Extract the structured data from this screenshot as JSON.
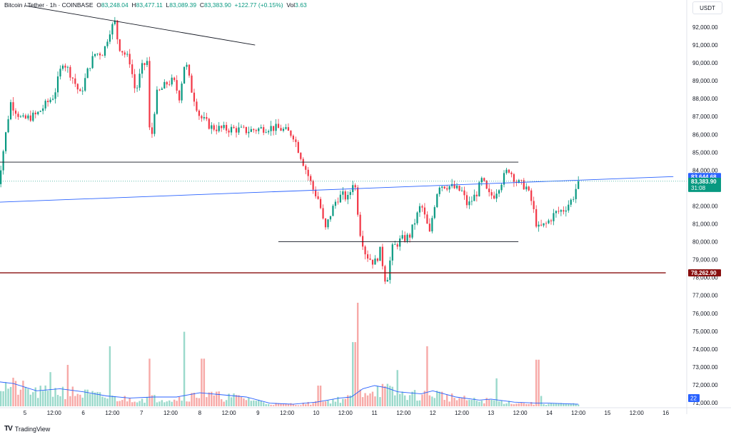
{
  "legend": {
    "symbol": "Bitcoin / Tether · 1h · COINBASE",
    "o_label": "O",
    "o": "83,248.04",
    "h_label": "H",
    "h": "83,477.11",
    "l_label": "L",
    "l": "83,089.39",
    "c_label": "C",
    "c": "83,383.90",
    "change": "+122.77 (+0.15%)",
    "vol_label": "Vol",
    "vol": "3.63"
  },
  "currency_button": "USDT",
  "branding": "TradingView",
  "colors": {
    "up": "#089981",
    "down": "#f23645",
    "trendline": "#2962ff",
    "level": "#131722",
    "support": "#880e0e"
  },
  "chart_data": {
    "type": "candlestick",
    "symbol": "Bitcoin / Tether",
    "interval": "1h",
    "exchange": "COINBASE",
    "ylim": [
      71000,
      93000
    ],
    "y_ticks": [
      "92,000.00",
      "91,000.00",
      "90,000.00",
      "89,000.00",
      "88,000.00",
      "87,000.00",
      "86,000.00",
      "85,000.00",
      "84,000.00",
      "83,000.00",
      "82,000.00",
      "81,000.00",
      "80,000.00",
      "79,000.00",
      "78,000.00",
      "77,000.00",
      "76,000.00",
      "75,000.00",
      "74,000.00",
      "73,000.00",
      "72,000.00",
      "71,000.00"
    ],
    "x_ticks": [
      "5",
      "12:00",
      "6",
      "12:00",
      "7",
      "12:00",
      "8",
      "12:00",
      "9",
      "12:00",
      "10",
      "12:00",
      "11",
      "12:00",
      "12",
      "12:00",
      "13",
      "12:00",
      "14",
      "12:00",
      "15",
      "12:00",
      "16"
    ],
    "price_labels": [
      {
        "value": 83644.68,
        "text": "83,644.68",
        "color": "#2962ff"
      },
      {
        "value": 83383.9,
        "text": "83,383.90",
        "countdown": "31:08",
        "color": "#089981"
      },
      {
        "value": 78262.9,
        "text": "78,262.90",
        "color": "#880e0e"
      }
    ],
    "volume_ma_label": "22",
    "horizontal_levels": [
      {
        "value": 84450,
        "color": "#131722",
        "style": "solid",
        "from_x": 4.5,
        "to_x": 13.47
      },
      {
        "value": 80000,
        "color": "#131722",
        "style": "solid",
        "from_x": 9.35,
        "to_x": 13.47
      },
      {
        "value": 78262.9,
        "color": "#880e0e",
        "style": "solid",
        "from_x": 4.4,
        "to_x": 16.0
      }
    ],
    "trendlines": [
      {
        "color": "#131722",
        "x1": 5.0,
        "y1": 93200,
        "x2": 8.95,
        "y2": 91000
      },
      {
        "color": "#2962ff",
        "x1": 4.45,
        "y1": 82200,
        "x2": 16.13,
        "y2": 83644.68
      }
    ],
    "path": [
      [
        4.5,
        82500
      ],
      [
        4.6,
        84500
      ],
      [
        4.75,
        87800
      ],
      [
        4.95,
        86800
      ],
      [
        5.2,
        87100
      ],
      [
        5.5,
        88200
      ],
      [
        5.65,
        90100
      ],
      [
        5.8,
        89300
      ],
      [
        5.95,
        88200
      ],
      [
        6.1,
        89800
      ],
      [
        6.2,
        90500
      ],
      [
        6.35,
        90600
      ],
      [
        6.45,
        91800
      ],
      [
        6.55,
        92300
      ],
      [
        6.6,
        91000
      ],
      [
        6.8,
        90100
      ],
      [
        6.9,
        88300
      ],
      [
        7.0,
        89700
      ],
      [
        7.1,
        90100
      ],
      [
        7.15,
        85100
      ],
      [
        7.25,
        88200
      ],
      [
        7.45,
        88900
      ],
      [
        7.55,
        89000
      ],
      [
        7.65,
        88100
      ],
      [
        7.75,
        90200
      ],
      [
        7.85,
        88600
      ],
      [
        8.0,
        87000
      ],
      [
        8.2,
        86400
      ],
      [
        8.4,
        86300
      ],
      [
        8.6,
        86300
      ],
      [
        8.8,
        86200
      ],
      [
        9.0,
        86300
      ],
      [
        9.2,
        86400
      ],
      [
        9.4,
        86300
      ],
      [
        9.6,
        86000
      ],
      [
        9.7,
        85100
      ],
      [
        9.85,
        83800
      ],
      [
        9.95,
        82900
      ],
      [
        10.05,
        82300
      ],
      [
        10.15,
        80600
      ],
      [
        10.25,
        81600
      ],
      [
        10.35,
        82400
      ],
      [
        10.45,
        82600
      ],
      [
        10.55,
        82400
      ],
      [
        10.65,
        83600
      ],
      [
        10.75,
        80600
      ],
      [
        10.85,
        79300
      ],
      [
        11.0,
        78800
      ],
      [
        11.1,
        79500
      ],
      [
        11.2,
        77600
      ],
      [
        11.3,
        79600
      ],
      [
        11.45,
        80100
      ],
      [
        11.6,
        80300
      ],
      [
        11.7,
        81200
      ],
      [
        11.8,
        82100
      ],
      [
        11.95,
        80400
      ],
      [
        12.0,
        81600
      ],
      [
        12.1,
        83200
      ],
      [
        12.3,
        83100
      ],
      [
        12.5,
        82800
      ],
      [
        12.6,
        82000
      ],
      [
        12.75,
        82700
      ],
      [
        12.85,
        83500
      ],
      [
        12.95,
        82600
      ],
      [
        13.05,
        82600
      ],
      [
        13.15,
        83200
      ],
      [
        13.3,
        84100
      ],
      [
        13.45,
        83300
      ],
      [
        13.6,
        83100
      ],
      [
        13.7,
        82200
      ],
      [
        13.8,
        80700
      ],
      [
        13.95,
        81000
      ],
      [
        14.1,
        81600
      ],
      [
        14.25,
        81800
      ],
      [
        14.4,
        82400
      ],
      [
        14.5,
        83383.9
      ]
    ],
    "candle_count": 236,
    "volume": {
      "peaks": [
        [
          4.5,
          22
        ],
        [
          4.55,
          64
        ],
        [
          5.45,
          33
        ],
        [
          5.75,
          40
        ],
        [
          6.45,
          58
        ],
        [
          7.15,
          46
        ],
        [
          7.75,
          72
        ],
        [
          8.05,
          46
        ],
        [
          9.55,
          3
        ],
        [
          10.05,
          20
        ],
        [
          10.65,
          62
        ],
        [
          10.7,
          100
        ],
        [
          11.4,
          35
        ],
        [
          11.9,
          58
        ],
        [
          12.45,
          8
        ],
        [
          13.1,
          27
        ],
        [
          13.8,
          45
        ],
        [
          13.85,
          10
        ],
        [
          14.4,
          3
        ]
      ],
      "ma": [
        [
          4.5,
          24
        ],
        [
          4.8,
          22
        ],
        [
          5.2,
          15
        ],
        [
          5.6,
          17
        ],
        [
          6.0,
          14
        ],
        [
          6.4,
          10
        ],
        [
          6.8,
          8
        ],
        [
          7.2,
          9
        ],
        [
          7.6,
          9
        ],
        [
          8.0,
          13
        ],
        [
          8.4,
          11
        ],
        [
          8.8,
          9
        ],
        [
          9.2,
          3
        ],
        [
          9.6,
          2
        ],
        [
          10.0,
          4
        ],
        [
          10.4,
          8
        ],
        [
          10.6,
          9
        ],
        [
          10.8,
          17
        ],
        [
          11.0,
          20
        ],
        [
          11.2,
          18
        ],
        [
          11.4,
          14
        ],
        [
          11.8,
          12
        ],
        [
          12.0,
          15
        ],
        [
          12.4,
          9
        ],
        [
          12.8,
          6
        ],
        [
          13.0,
          7
        ],
        [
          13.4,
          4
        ],
        [
          13.8,
          3
        ],
        [
          14.0,
          3
        ],
        [
          14.5,
          2
        ]
      ]
    }
  }
}
